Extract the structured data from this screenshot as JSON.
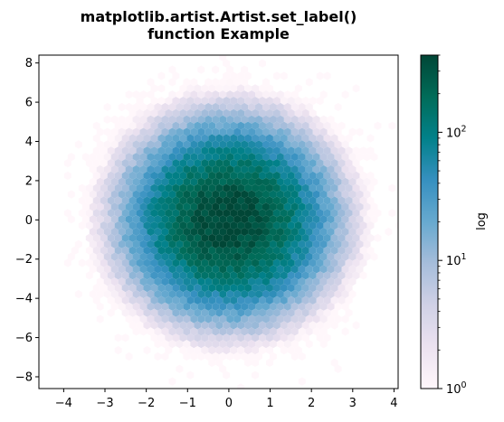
{
  "chart_data": {
    "type": "heatmap",
    "subtype": "hexbin",
    "title_lines": [
      "matplotlib.artist.Artist.set_label()",
      "function Example"
    ],
    "xlabel": "",
    "ylabel": "",
    "xlim": [
      -4.6,
      4.1
    ],
    "ylim": [
      -8.6,
      8.4
    ],
    "xticks": [
      -4,
      -3,
      -2,
      -1,
      0,
      1,
      2,
      3,
      4
    ],
    "xtick_labels": [
      "−4",
      "−3",
      "−2",
      "−1",
      "0",
      "1",
      "2",
      "3",
      "4"
    ],
    "yticks": [
      -8,
      -6,
      -4,
      -2,
      0,
      2,
      4,
      6,
      8
    ],
    "ytick_labels": [
      "−8",
      "−6",
      "−4",
      "−2",
      "0",
      "2",
      "4",
      "6",
      "8"
    ],
    "distribution": {
      "center": [
        0,
        0
      ],
      "x_std": 1.0,
      "y_std": 2.0,
      "peak_count": 400
    },
    "colormap": {
      "name": "PuBuGn",
      "scale": "log",
      "label": "log",
      "range": [
        1,
        400
      ],
      "major_ticks": [
        1,
        10,
        100
      ],
      "major_tick_labels": [
        {
          "base": "10",
          "exp": "0"
        },
        {
          "base": "10",
          "exp": "1"
        },
        {
          "base": "10",
          "exp": "2"
        }
      ],
      "colors": [
        "#fff7fb",
        "#ece2f0",
        "#d0d1e6",
        "#a6bddb",
        "#67a9cf",
        "#3690c0",
        "#02818a",
        "#016c59",
        "#014636"
      ]
    },
    "grid": false
  }
}
